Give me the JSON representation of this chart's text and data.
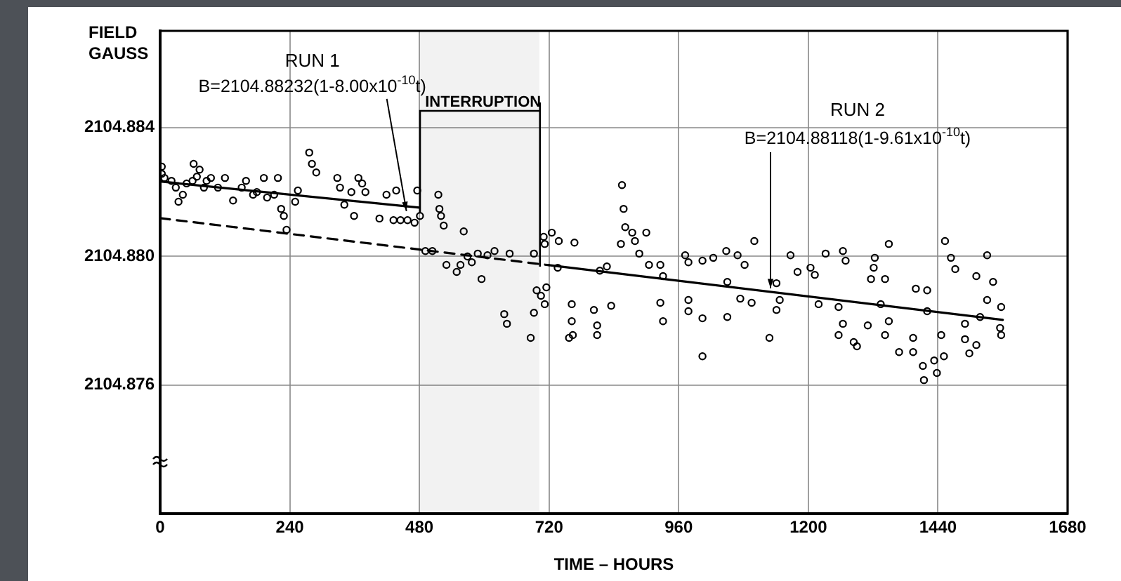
{
  "chart_data": {
    "type": "scatter",
    "xlabel": "TIME – HOURS",
    "ylabel": "FIELD\nGAUSS",
    "xlim": [
      0,
      1680
    ],
    "xticks": [
      0,
      240,
      480,
      720,
      960,
      1200,
      1440,
      1680
    ],
    "ylim": [
      2104.872,
      2104.887
    ],
    "yticks": [
      {
        "value": 2104.872,
        "label": null
      },
      {
        "value": 2104.876,
        "label": "2104.876"
      },
      {
        "value": 2104.88,
        "label": "2104.880"
      },
      {
        "value": 2104.884,
        "label": "2104.884"
      }
    ],
    "grid": true,
    "marker": "circle",
    "series": [
      {
        "color": "#000000",
        "x": [
          3,
          3,
          8,
          21,
          29,
          34,
          42,
          49,
          60,
          68,
          62,
          73,
          81,
          86,
          94,
          107,
          120,
          135,
          151,
          159,
          172,
          179,
          192,
          198,
          211,
          218,
          224,
          229,
          234,
          250,
          255,
          276,
          281,
          289,
          328,
          333,
          341,
          354,
          359,
          367,
          374,
          380,
          406,
          419,
          432,
          437,
          445,
          458,
          471,
          476,
          481,
          491,
          504,
          515,
          517,
          520,
          525,
          562,
          530,
          549,
          556,
          569,
          577,
          588,
          595,
          606,
          619,
          637,
          642,
          647,
          686,
          692,
          692,
          697,
          705,
          710,
          712,
          715,
          725,
          738,
          767,
          736,
          814,
          827,
          855,
          858,
          861,
          874,
          879,
          900,
          853,
          887,
          905,
          926,
          931,
          972,
          978,
          1004,
          1024,
          1048,
          1069,
          1100,
          1082,
          1050,
          1141,
          1167,
          1180,
          1204,
          1212,
          1232,
          1264,
          1269,
          1323,
          1349,
          1321,
          1316,
          1342,
          1399,
          1420,
          1453,
          1464,
          1472,
          1511,
          1531,
          1542,
          712,
          762,
          762,
          757,
          764,
          803,
          809,
          809,
          835,
          926,
          931,
          978,
          978,
          1004,
          1004,
          1050,
          1074,
          1095,
          1128,
          1141,
          1147,
          1219,
          1256,
          1256,
          1264,
          1284,
          1290,
          1310,
          1334,
          1342,
          1349,
          1368,
          1394,
          1394,
          1412,
          1414,
          1420,
          1433,
          1438,
          1446,
          1451,
          1490,
          1490,
          1498,
          1511,
          1518,
          1531,
          1555,
          1557,
          1557
        ],
        "values": [
          2104.88278,
          2104.88256,
          2104.88243,
          2104.88234,
          2104.88213,
          2104.88169,
          2104.88191,
          2104.88226,
          2104.88234,
          2104.88247,
          2104.88287,
          2104.88269,
          2104.88213,
          2104.88234,
          2104.88243,
          2104.88213,
          2104.88243,
          2104.88173,
          2104.88213,
          2104.88234,
          2104.88191,
          2104.88199,
          2104.88243,
          2104.88182,
          2104.88191,
          2104.88243,
          2104.88147,
          2104.88125,
          2104.88082,
          2104.88169,
          2104.88204,
          2104.88322,
          2104.88287,
          2104.8826,
          2104.88243,
          2104.88213,
          2104.8816,
          2104.88199,
          2104.88125,
          2104.88243,
          2104.88226,
          2104.88199,
          2104.88117,
          2104.88191,
          2104.88112,
          2104.88204,
          2104.88112,
          2104.88112,
          2104.88104,
          2104.88204,
          2104.88125,
          2104.88016,
          2104.88016,
          2104.88191,
          2104.88147,
          2104.88125,
          2104.88095,
          2104.88077,
          2104.87973,
          2104.87951,
          2104.87973,
          2104.87999,
          2104.87981,
          2104.88008,
          2104.87929,
          2104.88003,
          2104.88016,
          2104.8782,
          2104.8779,
          2104.88008,
          2104.87746,
          2104.87824,
          2104.88008,
          2104.87894,
          2104.87877,
          2104.8806,
          2104.88038,
          2104.87903,
          2104.88073,
          2104.88047,
          2104.88042,
          2104.87964,
          2104.87955,
          2104.87968,
          2104.88221,
          2104.88147,
          2104.8809,
          2104.88073,
          2104.88047,
          2104.88073,
          2104.88038,
          2104.88008,
          2104.87973,
          2104.87973,
          2104.87938,
          2104.88003,
          2104.87981,
          2104.87986,
          2104.87995,
          2104.88016,
          2104.88003,
          2104.88047,
          2104.87973,
          2104.8792,
          2104.87916,
          2104.88003,
          2104.87951,
          2104.87964,
          2104.87942,
          2104.88008,
          2104.88016,
          2104.87986,
          2104.87995,
          2104.88038,
          2104.87964,
          2104.87929,
          2104.87929,
          2104.87899,
          2104.87894,
          2104.88047,
          2104.87995,
          2104.8796,
          2104.87938,
          2104.88003,
          2104.8792,
          2104.87851,
          2104.87851,
          2104.87798,
          2104.87746,
          2104.87755,
          2104.87833,
          2104.87785,
          2104.87755,
          2104.87846,
          2104.87855,
          2104.87798,
          2104.87864,
          2104.87829,
          2104.87807,
          2104.87689,
          2104.87811,
          2104.87868,
          2104.87855,
          2104.87746,
          2104.87833,
          2104.87864,
          2104.87851,
          2104.87842,
          2104.87755,
          2104.8779,
          2104.87733,
          2104.8772,
          2104.87785,
          2104.87851,
          2104.87755,
          2104.87798,
          2104.87702,
          2104.87746,
          2104.87702,
          2104.87659,
          2104.87615,
          2104.87829,
          2104.87676,
          2104.87637,
          2104.87755,
          2104.87689,
          2104.8779,
          2104.87742,
          2104.87698,
          2104.87724,
          2104.87811,
          2104.87864,
          2104.87777,
          2104.87755,
          2104.87842
        ]
      },
      {
        "type": "line",
        "marker": "none",
        "color": "#000000",
        "x": [
          0,
          480
        ],
        "values": [
          2104.88232,
          2104.88151
        ]
      },
      {
        "type": "line",
        "marker": "none",
        "color": "#000000",
        "x": [
          720,
          1560
        ],
        "values": [
          2104.87972,
          2104.87802
        ]
      },
      {
        "type": "line",
        "marker": "none",
        "color": "#000000",
        "line_style": "dashed",
        "x": [
          0,
          720
        ],
        "values": [
          2104.88118,
          2104.87972
        ]
      }
    ],
    "bands": [
      {
        "axis": "x",
        "from": 480,
        "to": 702,
        "label": "INTERRUPTION"
      }
    ],
    "annotations": [
      {
        "text": "RUN 1\nB=2104.88232(1-8.00x10$^{-10}$t)",
        "x": 456,
        "y": 2104.8814
      },
      {
        "text": "RUN 2\nB=2104.88118(1-9.61x10$^{-10}$t)",
        "x": 1130,
        "y": 2104.879
      }
    ]
  }
}
